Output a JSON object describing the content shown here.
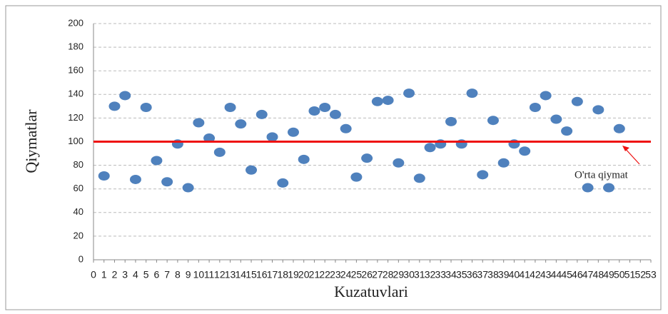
{
  "chart_data": {
    "type": "scatter",
    "xlabel": "Kuzatuvlari",
    "ylabel": "Qiymatlar",
    "x": [
      1,
      2,
      3,
      4,
      5,
      6,
      7,
      8,
      9,
      10,
      11,
      12,
      13,
      14,
      15,
      16,
      17,
      18,
      19,
      20,
      21,
      22,
      23,
      24,
      25,
      26,
      27,
      28,
      29,
      30,
      31,
      32,
      33,
      34,
      35,
      36,
      37,
      38,
      39,
      40,
      41,
      42,
      43,
      44,
      45,
      46,
      47,
      48,
      49,
      50
    ],
    "values": [
      71,
      130,
      139,
      68,
      129,
      84,
      66,
      98,
      61,
      116,
      103,
      91,
      129,
      115,
      76,
      123,
      104,
      65,
      108,
      85,
      126,
      129,
      123,
      111,
      70,
      86,
      134,
      135,
      82,
      141,
      69,
      95,
      98,
      117,
      98,
      141,
      72,
      118,
      82,
      98,
      92,
      129,
      139,
      119,
      109,
      134,
      61,
      127,
      61,
      111
    ],
    "color": "#4f81bd",
    "reference_line": {
      "value": 100,
      "color": "#ee1111"
    },
    "annotation": "O'rta qiymat",
    "xlim": [
      0,
      53
    ],
    "xticks": [
      0,
      1,
      2,
      3,
      4,
      5,
      6,
      7,
      8,
      9,
      10,
      11,
      12,
      13,
      14,
      15,
      16,
      17,
      18,
      19,
      20,
      21,
      22,
      23,
      24,
      25,
      26,
      27,
      28,
      29,
      30,
      31,
      32,
      33,
      34,
      35,
      36,
      37,
      38,
      39,
      40,
      41,
      42,
      43,
      44,
      45,
      46,
      47,
      48,
      49,
      50,
      51,
      52,
      53
    ],
    "ylim": [
      0,
      200
    ],
    "yticks": [
      0,
      20,
      40,
      60,
      80,
      100,
      120,
      140,
      160,
      180,
      200
    ],
    "grid": true
  }
}
